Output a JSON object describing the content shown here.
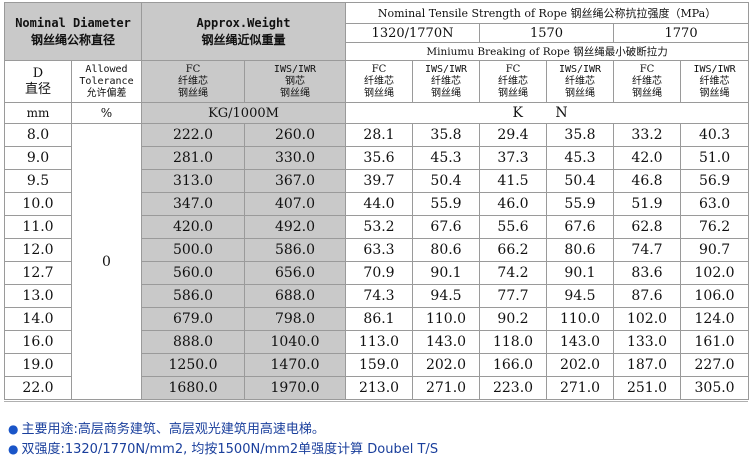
{
  "header": {
    "diameter_en": "Nominal Diameter",
    "diameter_cn": "钢丝绳公称直径",
    "weight_en": "Approx.Weight",
    "weight_cn": "钢丝绳近似重量",
    "tensile": "Nominal Tensile Strength of Rope 钢丝绳公称抗拉强度（MPa）",
    "grades": [
      "1320/1770N",
      "1570",
      "1770"
    ],
    "breaking": "Miniumu Breaking of Rope 钢丝绳最小破断拉力",
    "d_label": "D",
    "d_label_cn": "直径",
    "tolerance_en1": "Allowed",
    "tolerance_en2": "Tolerance",
    "tolerance_cn": "允许偏差",
    "fc_en": "FC",
    "fc_cn1": "纤维芯",
    "fc_cn2": "钢丝绳",
    "iws_en": "IWS/IWR",
    "iws_cn1": "纤维芯",
    "iws_cn2": "钢丝绳",
    "iws_w_cn1": "钢芯",
    "iws_w_cn2": "钢丝绳",
    "unit_mm": "mm",
    "unit_pct": "%",
    "unit_kg": "KG/1000M",
    "unit_kn": "K N"
  },
  "tolerance_value": "0",
  "rows": [
    {
      "d": "8.0",
      "fc_w": "222.0",
      "iws_w": "260.0",
      "b": [
        "28.1",
        "35.8",
        "29.4",
        "35.8",
        "33.2",
        "40.3"
      ]
    },
    {
      "d": "9.0",
      "fc_w": "281.0",
      "iws_w": "330.0",
      "b": [
        "35.6",
        "45.3",
        "37.3",
        "45.3",
        "42.0",
        "51.0"
      ]
    },
    {
      "d": "9.5",
      "fc_w": "313.0",
      "iws_w": "367.0",
      "b": [
        "39.7",
        "50.4",
        "41.5",
        "50.4",
        "46.8",
        "56.9"
      ]
    },
    {
      "d": "10.0",
      "fc_w": "347.0",
      "iws_w": "407.0",
      "b": [
        "44.0",
        "55.9",
        "46.0",
        "55.9",
        "51.9",
        "63.0"
      ]
    },
    {
      "d": "11.0",
      "fc_w": "420.0",
      "iws_w": "492.0",
      "b": [
        "53.2",
        "67.6",
        "55.6",
        "67.6",
        "62.8",
        "76.2"
      ]
    },
    {
      "d": "12.0",
      "fc_w": "500.0",
      "iws_w": "586.0",
      "b": [
        "63.3",
        "80.6",
        "66.2",
        "80.6",
        "74.7",
        "90.7"
      ]
    },
    {
      "d": "12.7",
      "fc_w": "560.0",
      "iws_w": "656.0",
      "b": [
        "70.9",
        "90.1",
        "74.2",
        "90.1",
        "83.6",
        "102.0"
      ]
    },
    {
      "d": "13.0",
      "fc_w": "586.0",
      "iws_w": "688.0",
      "b": [
        "74.3",
        "94.5",
        "77.7",
        "94.5",
        "87.6",
        "106.0"
      ]
    },
    {
      "d": "14.0",
      "fc_w": "679.0",
      "iws_w": "798.0",
      "b": [
        "86.1",
        "110.0",
        "90.2",
        "110.0",
        "102.0",
        "124.0"
      ]
    },
    {
      "d": "16.0",
      "fc_w": "888.0",
      "iws_w": "1040.0",
      "b": [
        "113.0",
        "143.0",
        "118.0",
        "143.0",
        "133.0",
        "161.0"
      ]
    },
    {
      "d": "19.0",
      "fc_w": "1250.0",
      "iws_w": "1470.0",
      "b": [
        "159.0",
        "202.0",
        "166.0",
        "202.0",
        "187.0",
        "227.0"
      ]
    },
    {
      "d": "22.0",
      "fc_w": "1680.0",
      "iws_w": "1970.0",
      "b": [
        "213.0",
        "271.0",
        "223.0",
        "271.0",
        "251.0",
        "305.0"
      ]
    }
  ],
  "notes": {
    "bullet": "●",
    "line1": "主要用途:高层商务建筑、高层观光建筑用高速电梯。",
    "line2": "双强度:1320/1770N/mm2, 均按1500N/mm2单强度计算 Doubel T/S"
  }
}
